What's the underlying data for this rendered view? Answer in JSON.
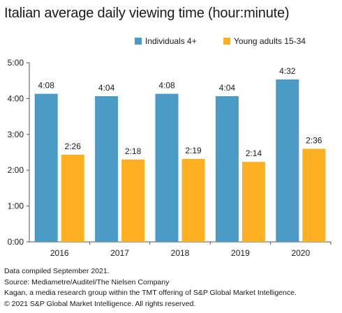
{
  "title": "Italian average daily viewing time (hour:minute)",
  "colors": {
    "series1": "#4b9bc6",
    "series2": "#fdb022",
    "axis": "#555555",
    "text": "#1a1a1a"
  },
  "notes": [
    "Data compiled September 2021.",
    "Source: Mediametre/Auditel/The Nielsen Company",
    "Kagan, a media research group within the TMT offering of S&P Global Market Intelligence.",
    "© 2021 S&P Global Market Intelligence. All rights reserved."
  ],
  "chart_data": {
    "type": "bar",
    "title": "Italian average daily viewing time (hour:minute)",
    "categories": [
      "2016",
      "2017",
      "2018",
      "2019",
      "2020"
    ],
    "series": [
      {
        "name": "Individuals 4+",
        "values": [
          248,
          244,
          248,
          244,
          272
        ],
        "labels": [
          "4:08",
          "4:04",
          "4:08",
          "4:04",
          "4:32"
        ],
        "color": "#4b9bc6"
      },
      {
        "name": "Young adults 15-34",
        "values": [
          146,
          138,
          139,
          134,
          156
        ],
        "labels": [
          "2:26",
          "2:18",
          "2:19",
          "2:14",
          "2:36"
        ],
        "color": "#fdb022"
      }
    ],
    "yticks": [
      "0:00",
      "1:00",
      "2:00",
      "3:00",
      "4:00",
      "5:00"
    ],
    "ylim": [
      0,
      300
    ],
    "ylabel_units": "minutes",
    "legend": "top-right",
    "grid": false
  }
}
